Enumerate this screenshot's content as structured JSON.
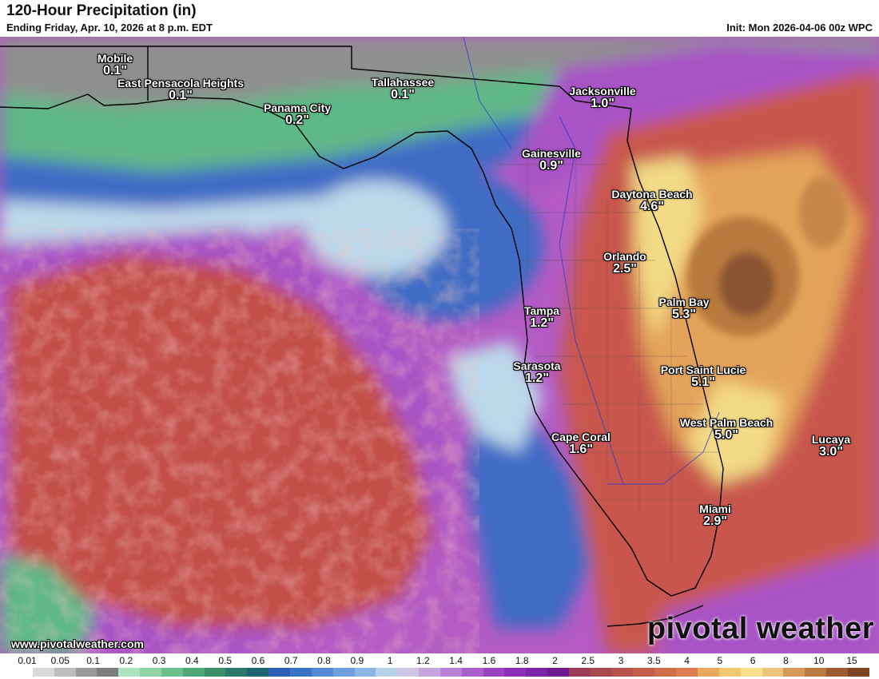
{
  "header": {
    "title": "120-Hour Precipitation (in)",
    "subtitle": "Ending Friday, Apr. 10, 2026 at 8 p.m. EDT",
    "init": "Init: Mon 2026-04-06 00z WPC"
  },
  "cities": [
    {
      "name": "Mobile",
      "value": "0.1\""
    },
    {
      "name": "East Pensacola Heights",
      "value": "0.1\""
    },
    {
      "name": "Tallahassee",
      "value": "0.1\""
    },
    {
      "name": "Panama City",
      "value": "0.2\""
    },
    {
      "name": "Jacksonville",
      "value": "1.0\""
    },
    {
      "name": "Gainesville",
      "value": "0.9\""
    },
    {
      "name": "Daytona Beach",
      "value": "4.6\""
    },
    {
      "name": "Orlando",
      "value": "2.5\""
    },
    {
      "name": "Palm Bay",
      "value": "5.3\""
    },
    {
      "name": "Tampa",
      "value": "1.2\""
    },
    {
      "name": "Sarasota",
      "value": "1.2\""
    },
    {
      "name": "Port Saint Lucie",
      "value": "5.1\""
    },
    {
      "name": "West Palm Beach",
      "value": "5.0\""
    },
    {
      "name": "Cape Coral",
      "value": "1.6\""
    },
    {
      "name": "Lucaya",
      "value": "3.0\""
    },
    {
      "name": "Miami",
      "value": "2.9\""
    }
  ],
  "footer": {
    "website": "www.pivotalweather.com",
    "brand": "pivotal weather"
  },
  "legend": {
    "ticks": [
      "0.01",
      "0.05",
      "0.1",
      "0.2",
      "0.3",
      "0.4",
      "0.5",
      "0.6",
      "0.7",
      "0.8",
      "0.9",
      "1",
      "1.2",
      "1.4",
      "1.6",
      "1.8",
      "2",
      "2.5",
      "3",
      "3.5",
      "4",
      "5",
      "6",
      "8",
      "10",
      "15"
    ],
    "colors": [
      "#ffffff",
      "#d9d9d9",
      "#bdbdbd",
      "#9a9a9a",
      "#7d7d7d",
      "#aee3c0",
      "#8ed4a6",
      "#6cc08c",
      "#4fa877",
      "#3b9068",
      "#2c7a6a",
      "#1f6470",
      "#2b5fb4",
      "#3a74c9",
      "#5288d4",
      "#6f9fdc",
      "#8eb6e2",
      "#b7d3ea",
      "#cfc6e6",
      "#c7a6e0",
      "#b982d6",
      "#ab5fcc",
      "#9c43c2",
      "#8d2fb8",
      "#7e24a8",
      "#6f1b8f",
      "#9c3c56",
      "#a94a4f",
      "#b8544c",
      "#c55e48",
      "#d16e4a",
      "#dc7e52",
      "#e8a860",
      "#f2c870",
      "#f8e08c",
      "#eec47c",
      "#d69a58",
      "#bb7a40",
      "#9d5d30",
      "#7d4424"
    ],
    "colors_count_note": "40"
  },
  "colors": {
    "gulf_high": "#c3504a",
    "east_high": "#c8574e",
    "max_core": "#9d5d30",
    "mid_orange": "#e3a35a",
    "yellow": "#f3da86",
    "purple": "#a853c6",
    "blue": "#3f6cc4",
    "light_blue": "#bcd8ea",
    "green": "#5fb888",
    "gray": "#8f8f8f"
  }
}
